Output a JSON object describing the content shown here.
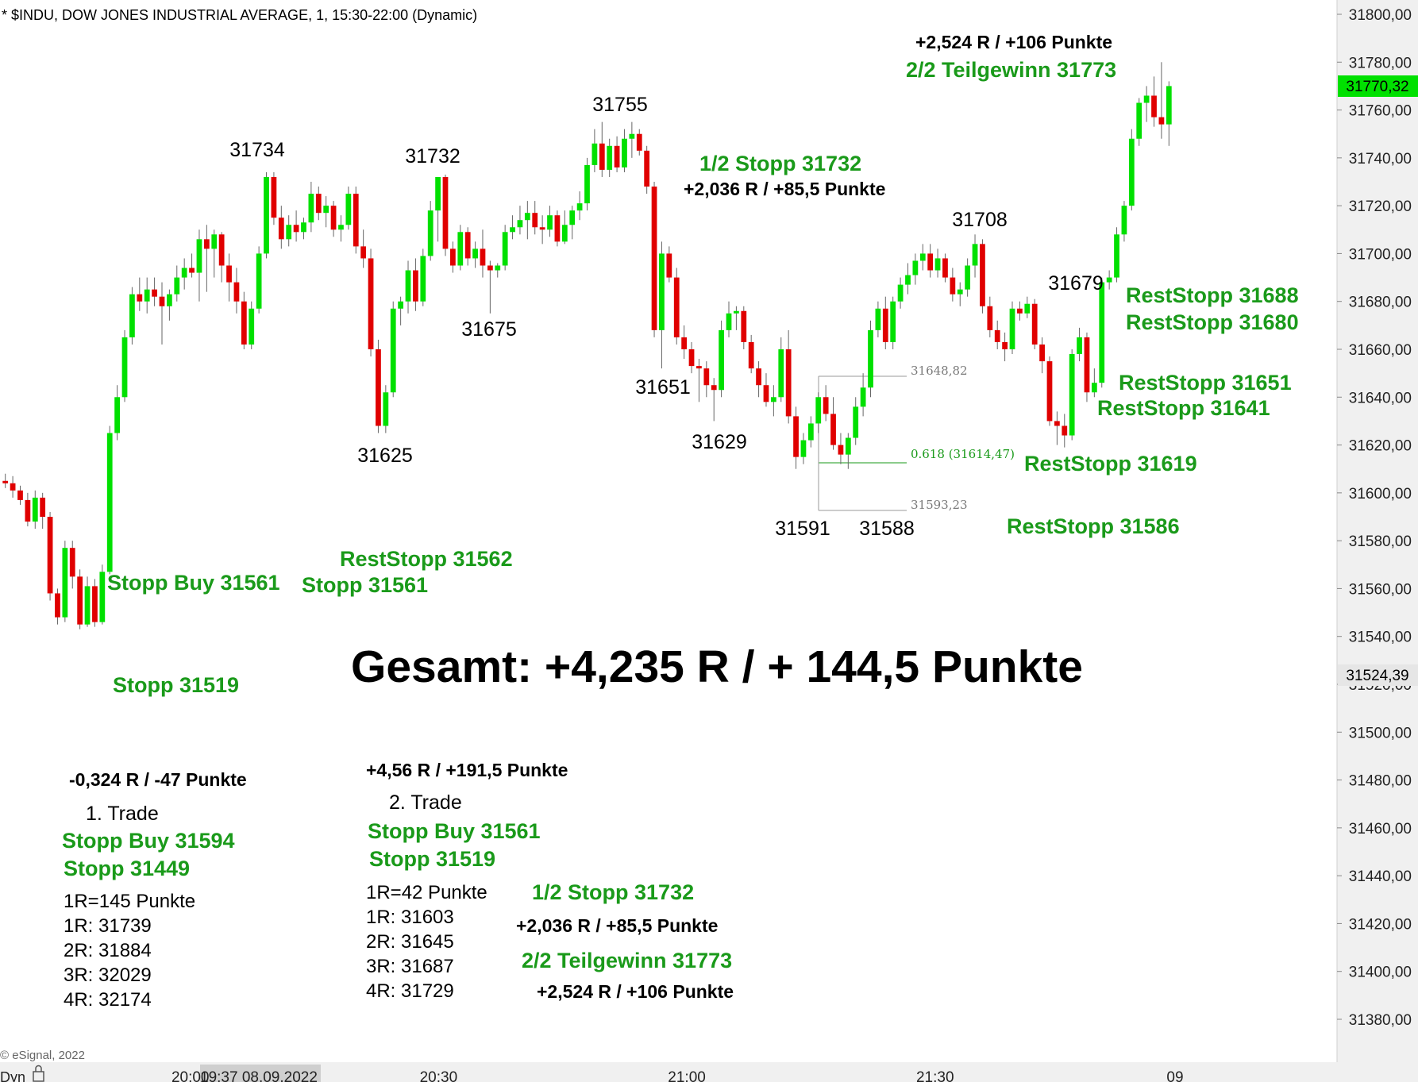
{
  "header": {
    "title": "* $INDU, DOW JONES INDUSTRIAL AVERAGE, 1, 15:30-22:00 (Dynamic)",
    "copyright": "© eSignal, 2022",
    "dyn_label": "Dyn"
  },
  "colors": {
    "up": "#00e000",
    "down": "#e00000",
    "text_green": "#1a9a1a",
    "price_tag": "#00e000"
  },
  "chart_data": {
    "type": "candlestick",
    "ylim": [
      31365,
      31811
    ],
    "y_ticks": [
      "31800,00",
      "31780,00",
      "31760,00",
      "31740,00",
      "31720,00",
      "31700,00",
      "31680,00",
      "31660,00",
      "31640,00",
      "31620,00",
      "31600,00",
      "31580,00",
      "31560,00",
      "31540,00",
      "31520,00",
      "31500,00",
      "31480,00",
      "31460,00",
      "31440,00",
      "31420,00",
      "31400,00",
      "31380,00"
    ],
    "y_tick_values": [
      31800,
      31780,
      31760,
      31740,
      31720,
      31700,
      31680,
      31660,
      31640,
      31620,
      31600,
      31580,
      31560,
      31540,
      31520,
      31500,
      31480,
      31460,
      31440,
      31420,
      31400,
      31380
    ],
    "x_ticks": [
      {
        "label": "19:37 08.09.2022",
        "value": "19:37"
      },
      {
        "label": "20:00",
        "value": "20:00"
      },
      {
        "label": "20:30",
        "value": "20:30"
      },
      {
        "label": "21:00",
        "value": "21:00"
      },
      {
        "label": "21:30",
        "value": "21:30"
      },
      {
        "label": "09",
        "value": "21:59"
      }
    ],
    "last_price": "31770,32",
    "marker_price": "31524,39",
    "fib_levels": [
      {
        "label": "31648,82",
        "value": 31648.82
      },
      {
        "label": "0.618 (31614,47)",
        "value": 31614.47
      },
      {
        "label": "31593,23",
        "value": 31593.23
      }
    ],
    "series_ohlc": [
      [
        31605,
        31608,
        31602,
        31604
      ],
      [
        31604,
        31607,
        31598,
        31601
      ],
      [
        31601,
        31603,
        31595,
        31597
      ],
      [
        31597,
        31600,
        31586,
        31588
      ],
      [
        31588,
        31601,
        31585,
        31598
      ],
      [
        31598,
        31600,
        31585,
        31590
      ],
      [
        31590,
        31592,
        31555,
        31558
      ],
      [
        31558,
        31560,
        31545,
        31548
      ],
      [
        31548,
        31580,
        31546,
        31577
      ],
      [
        31577,
        31580,
        31560,
        31565
      ],
      [
        31565,
        31568,
        31543,
        31545
      ],
      [
        31545,
        31565,
        31544,
        31561
      ],
      [
        31561,
        31564,
        31544,
        31546
      ],
      [
        31546,
        31570,
        31545,
        31567
      ],
      [
        31567,
        31628,
        31566,
        31625
      ],
      [
        31625,
        31645,
        31622,
        31640
      ],
      [
        31640,
        31668,
        31638,
        31665
      ],
      [
        31665,
        31686,
        31662,
        31683
      ],
      [
        31683,
        31690,
        31676,
        31680
      ],
      [
        31680,
        31690,
        31675,
        31685
      ],
      [
        31685,
        31690,
        31678,
        31682
      ],
      [
        31682,
        31688,
        31662,
        31678
      ],
      [
        31678,
        31685,
        31672,
        31683
      ],
      [
        31683,
        31695,
        31680,
        31690
      ],
      [
        31690,
        31698,
        31685,
        31694
      ],
      [
        31694,
        31700,
        31690,
        31692
      ],
      [
        31692,
        31710,
        31680,
        31706
      ],
      [
        31706,
        31712,
        31684,
        31702
      ],
      [
        31702,
        31710,
        31690,
        31708
      ],
      [
        31708,
        31709,
        31688,
        31695
      ],
      [
        31695,
        31700,
        31680,
        31688
      ],
      [
        31688,
        31694,
        31675,
        31680
      ],
      [
        31680,
        31684,
        31660,
        31662
      ],
      [
        31662,
        31680,
        31660,
        31677
      ],
      [
        31677,
        31703,
        31675,
        31700
      ],
      [
        31700,
        31734,
        31698,
        31732
      ],
      [
        31732,
        31734,
        31712,
        31715
      ],
      [
        31715,
        31720,
        31702,
        31706
      ],
      [
        31706,
        31716,
        31703,
        31712
      ],
      [
        31712,
        31718,
        31705,
        31709
      ],
      [
        31709,
        31715,
        31706,
        31713
      ],
      [
        31713,
        31730,
        31709,
        31725
      ],
      [
        31725,
        31728,
        31714,
        31717
      ],
      [
        31717,
        31724,
        31711,
        31720
      ],
      [
        31720,
        31722,
        31707,
        31710
      ],
      [
        31710,
        31716,
        31705,
        31712
      ],
      [
        31712,
        31728,
        31710,
        31725
      ],
      [
        31725,
        31728,
        31700,
        31703
      ],
      [
        31703,
        31710,
        31694,
        31698
      ],
      [
        31698,
        31702,
        31657,
        31660
      ],
      [
        31660,
        31664,
        31625,
        31628
      ],
      [
        31628,
        31645,
        31625,
        31642
      ],
      [
        31642,
        31680,
        31640,
        31677
      ],
      [
        31677,
        31682,
        31670,
        31680
      ],
      [
        31680,
        31697,
        31675,
        31693
      ],
      [
        31693,
        31698,
        31676,
        31680
      ],
      [
        31680,
        31702,
        31678,
        31699
      ],
      [
        31699,
        31722,
        31697,
        31718
      ],
      [
        31718,
        31732,
        31705,
        31732
      ],
      [
        31732,
        31733,
        31699,
        31702
      ],
      [
        31702,
        31705,
        31692,
        31695
      ],
      [
        31695,
        31712,
        31693,
        31709
      ],
      [
        31709,
        31711,
        31695,
        31698
      ],
      [
        31698,
        31705,
        31694,
        31702
      ],
      [
        31702,
        31710,
        31690,
        31695
      ],
      [
        31695,
        31697,
        31675,
        31693
      ],
      [
        31693,
        31696,
        31690,
        31695
      ],
      [
        31695,
        31712,
        31693,
        31709
      ],
      [
        31709,
        31716,
        31706,
        31711
      ],
      [
        31711,
        31720,
        31708,
        31714
      ],
      [
        31714,
        31722,
        31706,
        31717
      ],
      [
        31717,
        31722,
        31708,
        31711
      ],
      [
        31711,
        31716,
        31704,
        31710
      ],
      [
        31710,
        31720,
        31707,
        31716
      ],
      [
        31716,
        31718,
        31703,
        31705
      ],
      [
        31705,
        31718,
        31704,
        31712
      ],
      [
        31712,
        31720,
        31706,
        31718
      ],
      [
        31718,
        31726,
        31714,
        31721
      ],
      [
        31721,
        31740,
        31718,
        31737
      ],
      [
        31737,
        31752,
        31734,
        31746
      ],
      [
        31746,
        31755,
        31732,
        31735
      ],
      [
        31735,
        31748,
        31732,
        31745
      ],
      [
        31745,
        31749,
        31734,
        31736
      ],
      [
        31736,
        31752,
        31734,
        31748
      ],
      [
        31748,
        31755,
        31740,
        31750
      ],
      [
        31750,
        31752,
        31741,
        31743
      ],
      [
        31743,
        31745,
        31725,
        31728
      ],
      [
        31728,
        31730,
        31665,
        31668
      ],
      [
        31668,
        31705,
        31652,
        31700
      ],
      [
        31700,
        31703,
        31688,
        31690
      ],
      [
        31690,
        31694,
        31662,
        31665
      ],
      [
        31665,
        31670,
        31656,
        31660
      ],
      [
        31660,
        31663,
        31650,
        31653
      ],
      [
        31653,
        31656,
        31638,
        31652
      ],
      [
        31652,
        31655,
        31640,
        31645
      ],
      [
        31645,
        31648,
        31630,
        31643
      ],
      [
        31643,
        31672,
        31640,
        31668
      ],
      [
        31668,
        31680,
        31665,
        31675
      ],
      [
        31675,
        31678,
        31668,
        31676
      ],
      [
        31676,
        31678,
        31660,
        31663
      ],
      [
        31663,
        31666,
        31650,
        31652
      ],
      [
        31652,
        31655,
        31640,
        31645
      ],
      [
        31645,
        31650,
        31636,
        31638
      ],
      [
        31638,
        31645,
        31632,
        31640
      ],
      [
        31640,
        31665,
        31638,
        31660
      ],
      [
        31660,
        31668,
        31629,
        31632
      ],
      [
        31632,
        31636,
        31610,
        31615
      ],
      [
        31615,
        31625,
        31612,
        31622
      ],
      [
        31622,
        31632,
        31619,
        31629
      ],
      [
        31629,
        31642,
        31625,
        31640
      ],
      [
        31640,
        31645,
        31630,
        31633
      ],
      [
        31633,
        31640,
        31618,
        31620
      ],
      [
        31620,
        31625,
        31612,
        31616
      ],
      [
        31616,
        31625,
        31610,
        31623
      ],
      [
        31623,
        31640,
        31620,
        31636
      ],
      [
        31636,
        31650,
        31632,
        31644
      ],
      [
        31644,
        31672,
        31640,
        31668
      ],
      [
        31668,
        31680,
        31665,
        31677
      ],
      [
        31677,
        31682,
        31660,
        31663
      ],
      [
        31663,
        31682,
        31660,
        31680
      ],
      [
        31680,
        31690,
        31677,
        31687
      ],
      [
        31687,
        31696,
        31683,
        31691
      ],
      [
        31691,
        31700,
        31687,
        31697
      ],
      [
        31697,
        31704,
        31693,
        31700
      ],
      [
        31700,
        31704,
        31690,
        31693
      ],
      [
        31693,
        31702,
        31690,
        31698
      ],
      [
        31698,
        31700,
        31688,
        31690
      ],
      [
        31690,
        31694,
        31680,
        31683
      ],
      [
        31683,
        31688,
        31678,
        31685
      ],
      [
        31685,
        31698,
        31682,
        31695
      ],
      [
        31695,
        31708,
        31690,
        31704
      ],
      [
        31704,
        31706,
        31675,
        31678
      ],
      [
        31678,
        31682,
        31665,
        31668
      ],
      [
        31668,
        31672,
        31660,
        31663
      ],
      [
        31663,
        31667,
        31655,
        31660
      ],
      [
        31660,
        31680,
        31658,
        31677
      ],
      [
        31677,
        31680,
        31672,
        31675
      ],
      [
        31675,
        31682,
        31673,
        31679
      ],
      [
        31679,
        31681,
        31660,
        31662
      ],
      [
        31662,
        31665,
        31650,
        31655
      ],
      [
        31655,
        31657,
        31628,
        31630
      ],
      [
        31630,
        31634,
        31620,
        31628
      ],
      [
        31628,
        31633,
        31619,
        31624
      ],
      [
        31624,
        31660,
        31622,
        31658
      ],
      [
        31658,
        31669,
        31655,
        31665
      ],
      [
        31665,
        31667,
        31638,
        31642
      ],
      [
        31642,
        31652,
        31640,
        31646
      ],
      [
        31646,
        31690,
        31644,
        31688
      ],
      [
        31688,
        31693,
        31685,
        31690
      ],
      [
        31690,
        31711,
        31688,
        31708
      ],
      [
        31708,
        31722,
        31705,
        31720
      ],
      [
        31720,
        31752,
        31718,
        31748
      ],
      [
        31748,
        31765,
        31745,
        31763
      ],
      [
        31763,
        31770,
        31755,
        31766
      ],
      [
        31766,
        31774,
        31753,
        31757
      ],
      [
        31757,
        31780,
        31748,
        31754
      ],
      [
        31754,
        31772,
        31745,
        31770
      ]
    ]
  },
  "annotations": {
    "hl_31734": "31734",
    "hl_31732": "31732",
    "hl_31755": "31755",
    "hl_31675": "31675",
    "hl_31625": "31625",
    "hl_31651": "31651",
    "hl_31629": "31629",
    "hl_31708": "31708",
    "hl_31679": "31679",
    "hl_31591": "31591",
    "hl_31588": "31588",
    "top_result": "+2,524 R / +106 Punkte",
    "top_target": "2/2 Teilgewinn 31773",
    "half_stop": "1/2 Stopp 31732",
    "half_result": "+2,036 R / +85,5 Punkte",
    "reststopp_31688": "RestStopp 31688",
    "reststopp_31680": "RestStopp 31680",
    "reststopp_31651": "RestStopp 31651",
    "reststopp_31641": "RestStopp 31641",
    "reststopp_31619": "RestStopp 31619",
    "reststopp_31586": "RestStopp 31586",
    "reststopp_31562": "RestStopp 31562",
    "stopp_buy_31561": "Stopp Buy 31561",
    "stopp_31561": "Stopp 31561",
    "stopp_31519": "Stopp 31519",
    "gesamt": "Gesamt: +4,235 R / + 144,5 Punkte"
  },
  "trade1": {
    "result": "-0,324 R / -47 Punkte",
    "title": "1. Trade",
    "buy": "Stopp Buy 31594",
    "stop": "Stopp 31449",
    "lines": [
      "1R=145 Punkte",
      "1R: 31739",
      "2R: 31884",
      "3R: 32029",
      "4R: 32174"
    ]
  },
  "trade2": {
    "result": "+4,56 R / +191,5 Punkte",
    "title": "2. Trade",
    "buy": "Stopp Buy 31561",
    "stop": "Stopp 31519",
    "lines": [
      "1R=42 Punkte",
      "1R: 31603",
      "2R: 31645",
      "3R: 31687",
      "4R: 31729"
    ],
    "half_stop": "1/2 Stopp 31732",
    "half_result": "+2,036 R / +85,5 Punkte",
    "target": "2/2 Teilgewinn 31773",
    "target_result": "+2,524 R / +106 Punkte"
  }
}
